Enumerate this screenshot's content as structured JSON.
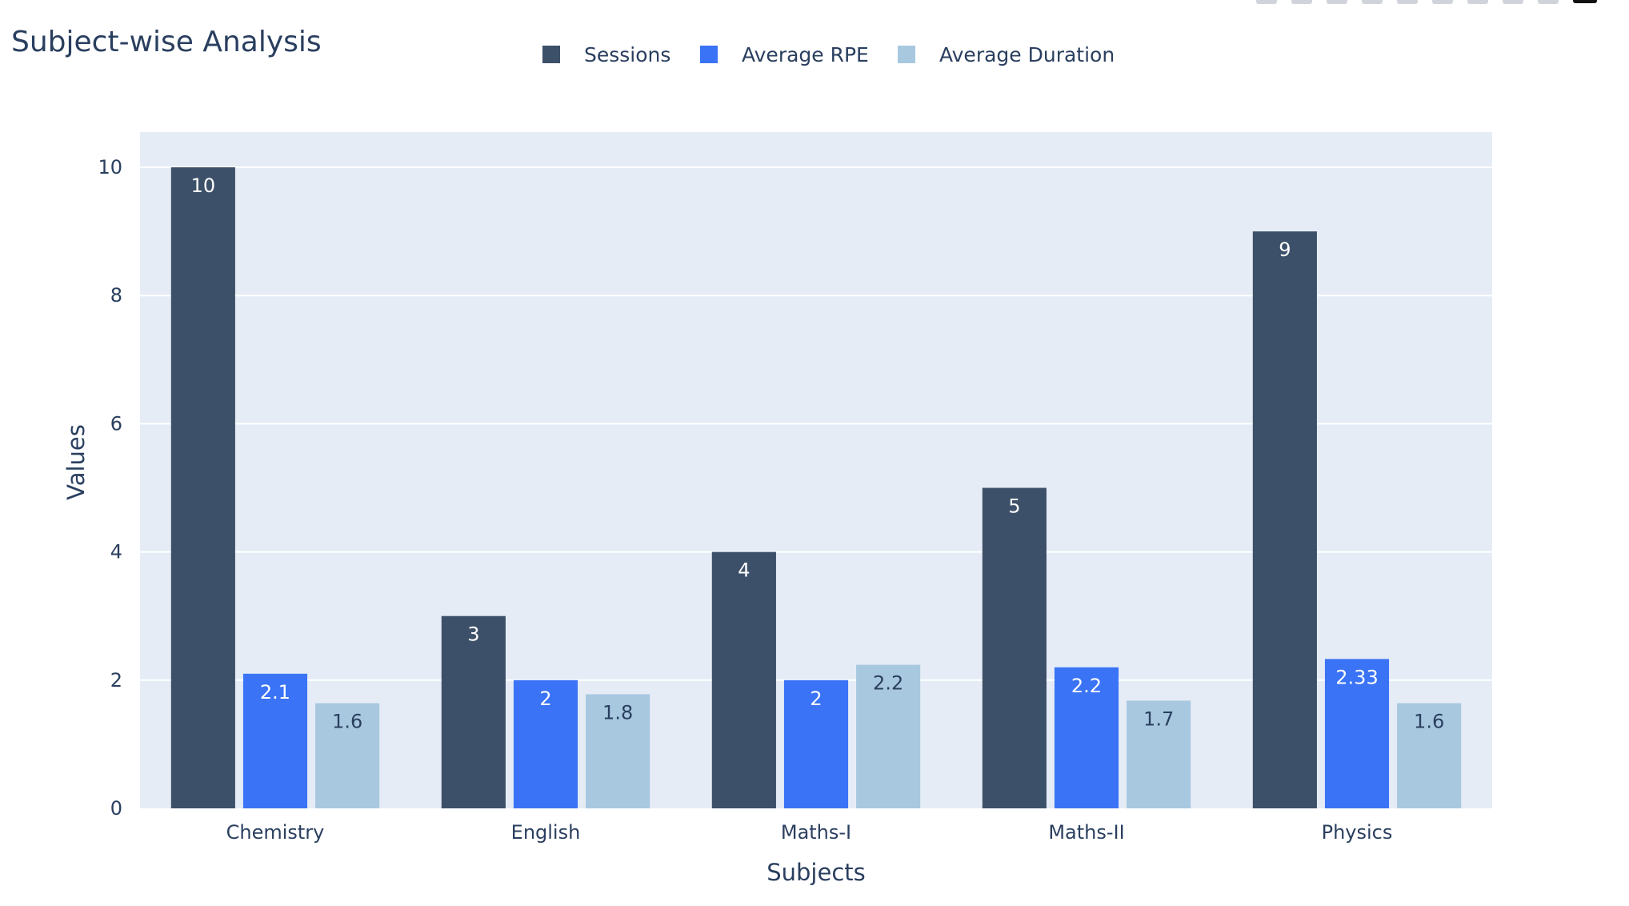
{
  "chart_data": {
    "type": "bar",
    "title": "Subject-wise Analysis",
    "xlabel": "Subjects",
    "ylabel": "Values",
    "categories": [
      "Chemistry",
      "English",
      "Maths-I",
      "Maths-II",
      "Physics"
    ],
    "ylim": [
      0,
      10.55
    ],
    "yticks": [
      0,
      2,
      4,
      6,
      8,
      10
    ],
    "grid": true,
    "legend_position": "top-center",
    "background_color": "#e5ecf6",
    "series": [
      {
        "name": "Sessions",
        "color": "#3d5069",
        "label_color": "#ffffff",
        "values": [
          10,
          3,
          4,
          5,
          9
        ],
        "labels": [
          "10",
          "3",
          "4",
          "5",
          "9"
        ]
      },
      {
        "name": "Average RPE",
        "color": "#3a73f5",
        "label_color": "#ffffff",
        "values": [
          2.1,
          2,
          2,
          2.2,
          2.33
        ],
        "labels": [
          "2.1",
          "2",
          "2",
          "2.2",
          "2.33"
        ]
      },
      {
        "name": "Average Duration",
        "color": "#a8c8e0",
        "label_color": "#2a3f5f",
        "values": [
          1.64,
          1.78,
          2.24,
          1.68,
          1.64
        ],
        "labels": [
          "1.6",
          "1.8",
          "2.2",
          "1.7",
          "1.6"
        ]
      }
    ]
  },
  "toolbar": {
    "icons": [
      "camera-icon",
      "zoom-icon",
      "pan-icon",
      "box-select-icon",
      "lasso-icon",
      "zoom-in-icon",
      "zoom-out-icon",
      "autoscale-icon",
      "reset-axes-icon",
      "plotly-logo-icon"
    ]
  }
}
